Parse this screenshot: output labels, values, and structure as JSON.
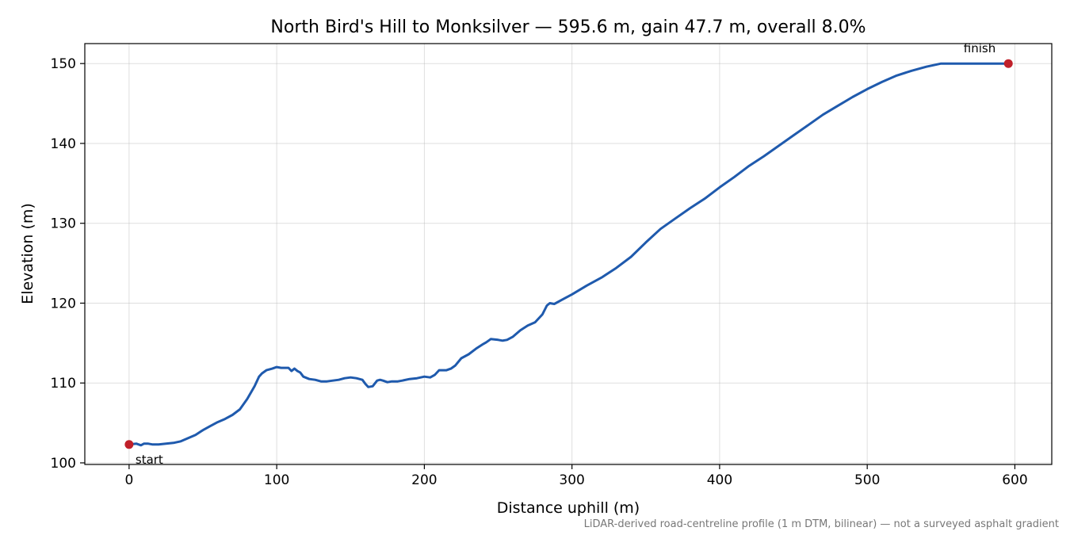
{
  "chart_data": {
    "type": "line",
    "title": "North Bird's Hill to Monksilver — 595.6 m, gain 47.7 m, overall 8.0%",
    "xlabel": "Distance uphill (m)",
    "ylabel": "Elevation (m)",
    "xlim": [
      -30,
      625
    ],
    "ylim": [
      99.8,
      152.5
    ],
    "xticks": [
      0,
      100,
      200,
      300,
      400,
      500,
      600
    ],
    "yticks": [
      100,
      110,
      120,
      130,
      140,
      150
    ],
    "grid": true,
    "series": [
      {
        "color": "#1f5aad",
        "x": [
          0,
          5,
          8,
          10,
          13,
          16,
          20,
          25,
          30,
          35,
          40,
          45,
          50,
          55,
          60,
          65,
          70,
          75,
          80,
          85,
          88,
          90,
          93,
          97,
          100,
          103,
          105,
          108,
          110,
          112,
          114,
          116,
          118,
          122,
          126,
          130,
          134,
          138,
          142,
          146,
          150,
          154,
          158,
          160,
          162,
          165,
          168,
          170,
          172,
          175,
          178,
          182,
          185,
          190,
          195,
          200,
          204,
          207,
          210,
          215,
          218,
          221,
          225,
          230,
          235,
          240,
          242,
          245,
          250,
          253,
          256,
          260,
          265,
          270,
          275,
          280,
          283,
          285,
          288,
          290,
          295,
          300,
          310,
          320,
          330,
          340,
          350,
          360,
          370,
          380,
          390,
          400,
          410,
          420,
          430,
          440,
          450,
          460,
          470,
          480,
          490,
          500,
          510,
          520,
          530,
          540,
          550,
          560,
          570,
          580,
          590,
          595.6
        ],
        "values": [
          102.3,
          102.4,
          102.2,
          102.4,
          102.4,
          102.3,
          102.3,
          102.4,
          102.5,
          102.7,
          103.1,
          103.5,
          104.1,
          104.6,
          105.1,
          105.5,
          106.0,
          106.7,
          108.0,
          109.6,
          110.8,
          111.2,
          111.6,
          111.8,
          112.0,
          111.9,
          111.9,
          111.9,
          111.5,
          111.8,
          111.5,
          111.3,
          110.8,
          110.5,
          110.4,
          110.2,
          110.2,
          110.3,
          110.4,
          110.6,
          110.7,
          110.6,
          110.4,
          109.9,
          109.5,
          109.6,
          110.3,
          110.4,
          110.3,
          110.1,
          110.2,
          110.2,
          110.3,
          110.5,
          110.6,
          110.8,
          110.7,
          111.0,
          111.6,
          111.6,
          111.8,
          112.2,
          113.1,
          113.6,
          114.3,
          114.9,
          115.1,
          115.5,
          115.4,
          115.3,
          115.4,
          115.8,
          116.6,
          117.2,
          117.6,
          118.6,
          119.7,
          120.0,
          119.9,
          120.1,
          120.6,
          121.1,
          122.2,
          123.2,
          124.4,
          125.8,
          127.6,
          129.3,
          130.6,
          131.9,
          133.1,
          134.5,
          135.8,
          137.2,
          138.4,
          139.7,
          141.0,
          142.3,
          143.6,
          144.7,
          145.8,
          146.8,
          147.7,
          148.5,
          149.1,
          149.6,
          150.0,
          150.0,
          150.0,
          150.0,
          150.0,
          150.0
        ]
      }
    ],
    "markers": [
      {
        "x": 0,
        "y": 102.3,
        "label": "start",
        "color": "#c0202a"
      },
      {
        "x": 595.6,
        "y": 150.0,
        "label": "finish",
        "color": "#c0202a"
      }
    ],
    "footnote": "LiDAR-derived road-centreline profile (1 m DTM, bilinear) — not a surveyed asphalt gradient"
  }
}
